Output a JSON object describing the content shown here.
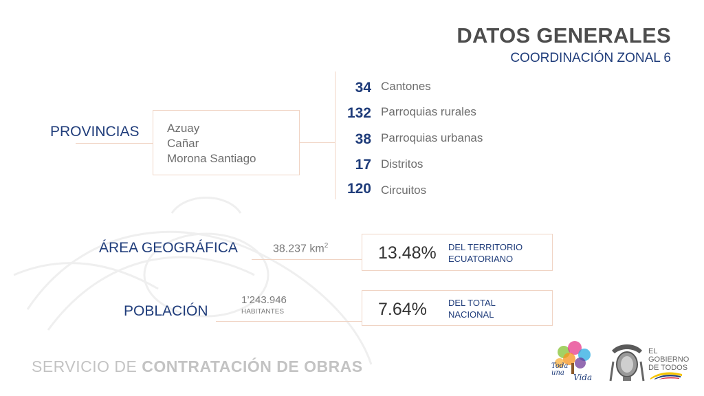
{
  "header": {
    "title": "DATOS GENERALES",
    "subtitle": "COORDINACIÓN ZONAL 6"
  },
  "provincias": {
    "label": "PROVINCIAS",
    "items": [
      "Azuay",
      "Cañar",
      "Morona Santiago"
    ]
  },
  "stats": [
    {
      "value": "34",
      "label": "Cantones"
    },
    {
      "value": "132",
      "label": "Parroquias rurales"
    },
    {
      "value": "38",
      "label": "Parroquias urbanas"
    },
    {
      "value": "17",
      "label": "Distritos"
    },
    {
      "value": "120",
      "label": "Circuitos"
    }
  ],
  "area": {
    "label": "ÁREA GEOGRÁFICA",
    "value": "38.237 km",
    "unit_sup": "2",
    "percent": "13.48%",
    "desc_line1": "DEL TERRITORIO",
    "desc_line2": "ECUATORIANO"
  },
  "poblacion": {
    "label": "POBLACIÓN",
    "value": "1’243.946",
    "value_sub": "HABITANTES",
    "percent": "7.64%",
    "desc_line1": "DEL TOTAL",
    "desc_line2": "NACIONAL"
  },
  "footer": {
    "text_light": "SERVICIO DE",
    "text_bold": "CONTRATACIÓN DE OBRAS"
  },
  "logos": {
    "toda_line1": "Toda",
    "toda_line2": "una",
    "toda_line3": "Vida",
    "gob_line1": "EL",
    "gob_line2": "GOBIERNO",
    "gob_line3": "DE TODOS"
  },
  "colors": {
    "accent_blue": "#1f3c7a",
    "line_peach": "#f0d4c4",
    "title_grey": "#4d4d4d"
  }
}
